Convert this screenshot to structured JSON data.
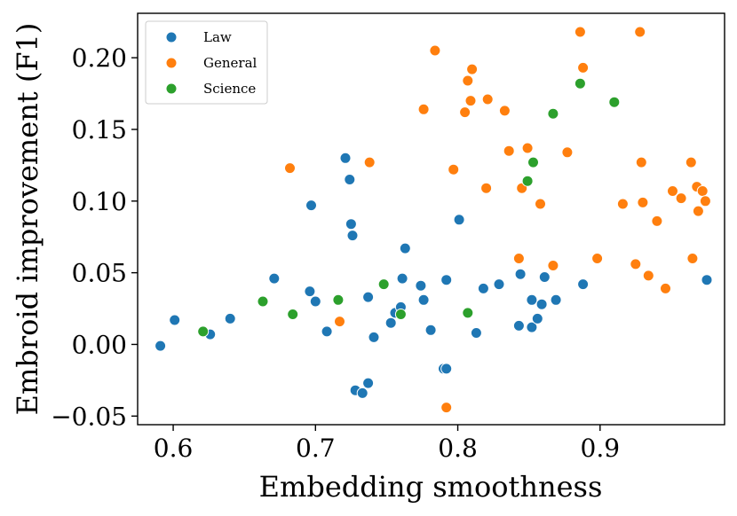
{
  "chart_data": {
    "type": "scatter",
    "title": "",
    "xlabel": "Embedding smoothness",
    "ylabel": "Embroid improvement (F1)",
    "xlim": [
      0.575,
      0.9875
    ],
    "ylim": [
      -0.056,
      0.231
    ],
    "xticks": [
      0.6,
      0.7,
      0.8,
      0.9
    ],
    "xtick_labels": [
      "0.6",
      "0.7",
      "0.8",
      "0.9"
    ],
    "yticks": [
      -0.05,
      0.0,
      0.05,
      0.1,
      0.15,
      0.2
    ],
    "ytick_labels": [
      "−0.05",
      "0.00",
      "0.05",
      "0.10",
      "0.15",
      "0.20"
    ],
    "grid": false,
    "legend_position": "top-left",
    "series": [
      {
        "name": "Law",
        "color": "#1f77b4",
        "points": [
          [
            0.591,
            -0.001
          ],
          [
            0.601,
            0.017
          ],
          [
            0.626,
            0.007
          ],
          [
            0.64,
            0.018
          ],
          [
            0.671,
            0.046
          ],
          [
            0.697,
            0.097
          ],
          [
            0.696,
            0.037
          ],
          [
            0.7,
            0.03
          ],
          [
            0.708,
            0.009
          ],
          [
            0.721,
            0.13
          ],
          [
            0.724,
            0.115
          ],
          [
            0.725,
            0.084
          ],
          [
            0.726,
            0.076
          ],
          [
            0.728,
            -0.032
          ],
          [
            0.733,
            -0.034
          ],
          [
            0.737,
            0.033
          ],
          [
            0.737,
            -0.027
          ],
          [
            0.741,
            0.005
          ],
          [
            0.753,
            0.015
          ],
          [
            0.756,
            0.022
          ],
          [
            0.76,
            0.026
          ],
          [
            0.761,
            0.046
          ],
          [
            0.763,
            0.067
          ],
          [
            0.774,
            0.041
          ],
          [
            0.776,
            0.031
          ],
          [
            0.781,
            0.01
          ],
          [
            0.79,
            -0.017
          ],
          [
            0.792,
            -0.017
          ],
          [
            0.792,
            0.045
          ],
          [
            0.801,
            0.087
          ],
          [
            0.813,
            0.008
          ],
          [
            0.818,
            0.039
          ],
          [
            0.829,
            0.042
          ],
          [
            0.843,
            0.013
          ],
          [
            0.844,
            0.049
          ],
          [
            0.852,
            0.012
          ],
          [
            0.852,
            0.031
          ],
          [
            0.856,
            0.018
          ],
          [
            0.859,
            0.028
          ],
          [
            0.861,
            0.047
          ],
          [
            0.869,
            0.031
          ],
          [
            0.888,
            0.042
          ],
          [
            0.975,
            0.045
          ]
        ]
      },
      {
        "name": "General",
        "color": "#ff7f0e",
        "points": [
          [
            0.682,
            0.123
          ],
          [
            0.717,
            0.016
          ],
          [
            0.738,
            0.127
          ],
          [
            0.776,
            0.164
          ],
          [
            0.784,
            0.205
          ],
          [
            0.792,
            -0.044
          ],
          [
            0.797,
            0.122
          ],
          [
            0.805,
            0.162
          ],
          [
            0.807,
            0.184
          ],
          [
            0.809,
            0.17
          ],
          [
            0.81,
            0.192
          ],
          [
            0.82,
            0.109
          ],
          [
            0.821,
            0.171
          ],
          [
            0.833,
            0.163
          ],
          [
            0.836,
            0.135
          ],
          [
            0.843,
            0.06
          ],
          [
            0.845,
            0.109
          ],
          [
            0.849,
            0.137
          ],
          [
            0.858,
            0.098
          ],
          [
            0.867,
            0.055
          ],
          [
            0.877,
            0.134
          ],
          [
            0.886,
            0.218
          ],
          [
            0.888,
            0.193
          ],
          [
            0.898,
            0.06
          ],
          [
            0.916,
            0.098
          ],
          [
            0.925,
            0.056
          ],
          [
            0.928,
            0.218
          ],
          [
            0.929,
            0.127
          ],
          [
            0.93,
            0.099
          ],
          [
            0.934,
            0.048
          ],
          [
            0.94,
            0.086
          ],
          [
            0.946,
            0.039
          ],
          [
            0.951,
            0.107
          ],
          [
            0.957,
            0.102
          ],
          [
            0.964,
            0.127
          ],
          [
            0.965,
            0.06
          ],
          [
            0.968,
            0.11
          ],
          [
            0.969,
            0.093
          ],
          [
            0.972,
            0.107
          ],
          [
            0.974,
            0.1
          ]
        ]
      },
      {
        "name": "Science",
        "color": "#2ca02c",
        "points": [
          [
            0.621,
            0.009
          ],
          [
            0.663,
            0.03
          ],
          [
            0.684,
            0.021
          ],
          [
            0.716,
            0.031
          ],
          [
            0.748,
            0.042
          ],
          [
            0.76,
            0.021
          ],
          [
            0.807,
            0.022
          ],
          [
            0.849,
            0.114
          ],
          [
            0.853,
            0.127
          ],
          [
            0.867,
            0.161
          ],
          [
            0.886,
            0.182
          ],
          [
            0.91,
            0.169
          ]
        ]
      }
    ]
  }
}
